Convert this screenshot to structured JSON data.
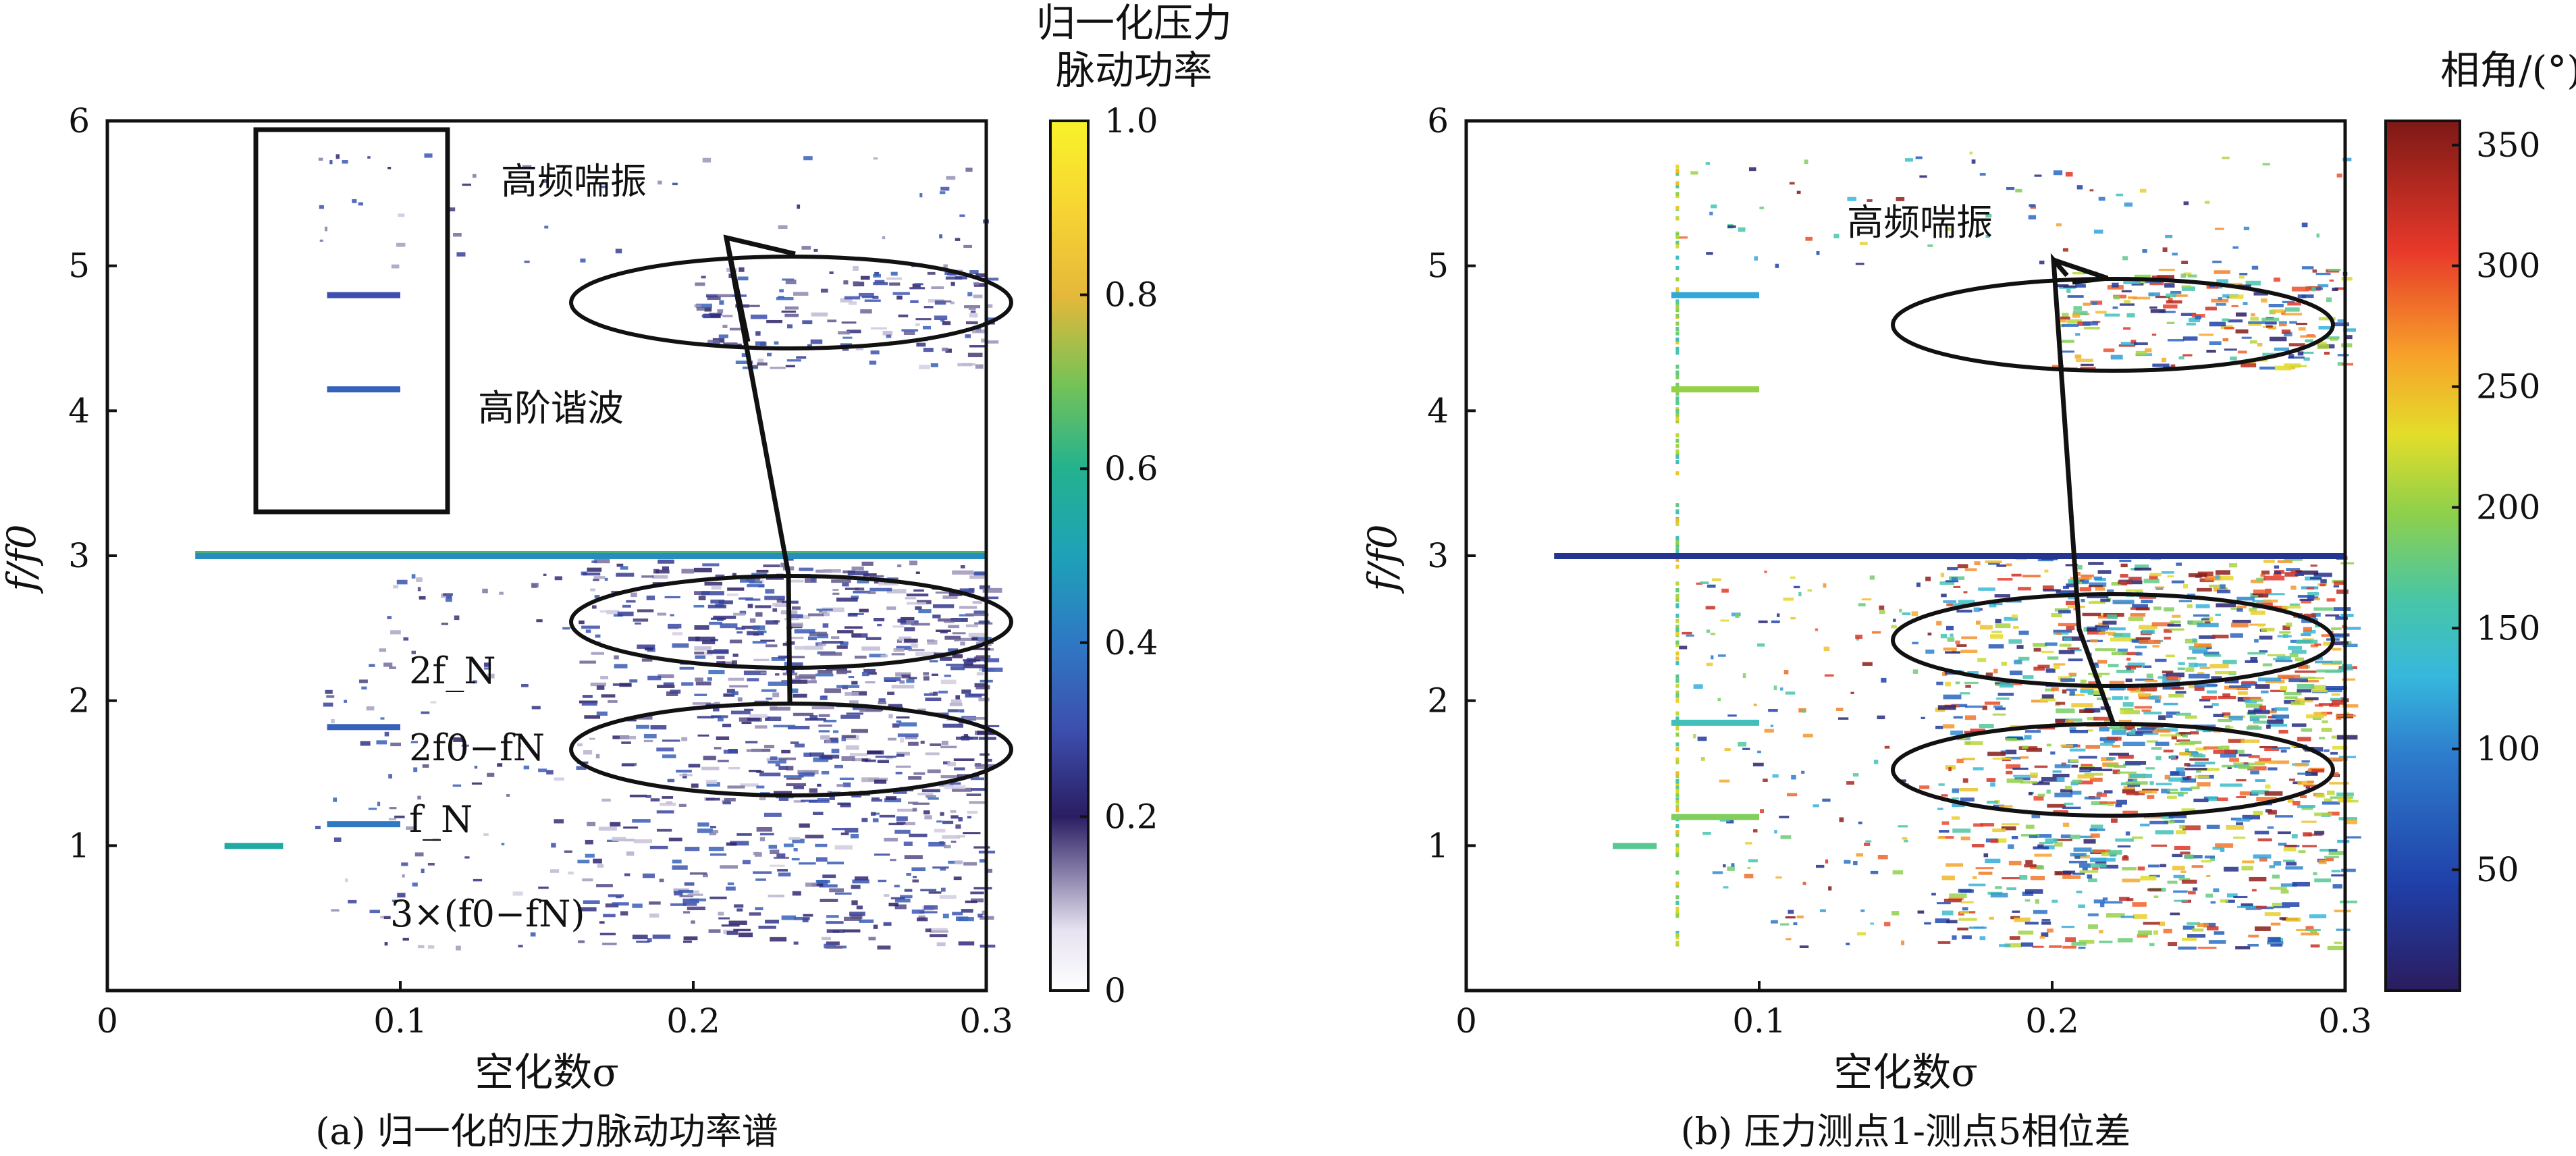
{
  "chart_data": [
    {
      "type": "heatmap",
      "caption": "(a) 归一化的压力脉动功率谱",
      "xlabel": "空化数σ",
      "ylabel": "f/f0",
      "xlim": [
        0,
        0.3
      ],
      "ylim": [
        0,
        6
      ],
      "xticks": [
        0,
        0.1,
        0.2,
        0.3
      ],
      "xtick_labels": [
        "0",
        "0.1",
        "0.2",
        "0.3"
      ],
      "yticks": [
        1,
        2,
        3,
        4,
        5,
        6
      ],
      "ytick_labels": [
        "1",
        "2",
        "3",
        "4",
        "5",
        "6"
      ],
      "colorbar": {
        "title_lines": [
          "归一化压力",
          "脉动功率"
        ],
        "range": [
          0,
          1.0
        ],
        "ticks": [
          0,
          0.2,
          0.4,
          0.6,
          0.8,
          1.0
        ],
        "tick_labels": [
          "0",
          "0.2",
          "0.4",
          "0.6",
          "0.8",
          "1.0"
        ],
        "colormap": "parula-like (white → purple → blue → teal → green → yellow)"
      },
      "annotations": [
        "高频喘振",
        "高阶谐波",
        "2f_N",
        "2f0−fN",
        "f_N",
        "3×(f0−fN)"
      ],
      "features": [
        {
          "name": "3f0 line",
          "x_range": [
            0.03,
            0.3
          ],
          "y": 3.0,
          "value": 0.45
        },
        {
          "name": "harmonic",
          "x_range": [
            0.075,
            0.1
          ],
          "y": 4.8,
          "value": 0.3
        },
        {
          "name": "harmonic",
          "x_range": [
            0.075,
            0.1
          ],
          "y": 4.15,
          "value": 0.35
        },
        {
          "name": "fN",
          "x_range": [
            0.075,
            0.1
          ],
          "y": 1.15,
          "value": 0.4
        },
        {
          "name": "2f0-fN",
          "x_range": [
            0.075,
            0.1
          ],
          "y": 1.82,
          "value": 0.35
        },
        {
          "name": "f0",
          "x_range": [
            0.04,
            0.06
          ],
          "y": 1.0,
          "value": 0.55
        }
      ],
      "highlight_regions": {
        "rectangle": {
          "x_range": [
            0.05,
            0.117
          ],
          "y_range": [
            3.3,
            5.95
          ]
        },
        "ellipses": [
          {
            "label": "高频喘振",
            "center": [
              0.235,
              4.75
            ]
          },
          {
            "center": [
              0.235,
              2.53
            ]
          },
          {
            "center": [
              0.235,
              1.67
            ]
          }
        ]
      }
    },
    {
      "type": "heatmap",
      "caption": "(b) 压力测点1-测点5相位差",
      "xlabel": "空化数σ",
      "ylabel": "f/f0",
      "xlim": [
        0,
        0.3
      ],
      "ylim": [
        0,
        6
      ],
      "xticks": [
        0,
        0.1,
        0.2,
        0.3
      ],
      "xtick_labels": [
        "0",
        "0.1",
        "0.2",
        "0.3"
      ],
      "yticks": [
        1,
        2,
        3,
        4,
        5,
        6
      ],
      "ytick_labels": [
        "1",
        "2",
        "3",
        "4",
        "5",
        "6"
      ],
      "colorbar": {
        "title": "相角/(°)",
        "range": [
          0,
          360
        ],
        "ticks": [
          50,
          100,
          150,
          200,
          250,
          300,
          350
        ],
        "tick_labels": [
          "50",
          "100",
          "150",
          "200",
          "250",
          "300",
          "350"
        ],
        "colormap": "jet"
      },
      "annotations": [
        "高频喘振"
      ],
      "features": [
        {
          "name": "3f0 line",
          "x_range": [
            0.03,
            0.3
          ],
          "y": 3.0,
          "phase": 30
        },
        {
          "name": "harmonic",
          "x_range": [
            0.07,
            0.1
          ],
          "y": 4.8,
          "phase": 120
        },
        {
          "name": "harmonic",
          "x_range": [
            0.07,
            0.1
          ],
          "y": 4.15,
          "phase": 200
        },
        {
          "name": "fN",
          "x_range": [
            0.07,
            0.1
          ],
          "y": 1.2,
          "phase": 190
        },
        {
          "name": "2f0-fN",
          "x_range": [
            0.07,
            0.1
          ],
          "y": 1.85,
          "phase": 150
        },
        {
          "name": "f0",
          "x_range": [
            0.05,
            0.065
          ],
          "y": 1.0,
          "phase": 170
        },
        {
          "name": "vertical band",
          "x": 0.072,
          "y_range": [
            0.3,
            5.7
          ]
        }
      ],
      "highlight_regions": {
        "ellipses": [
          {
            "label": "高频喘振",
            "center": [
              0.25,
              4.6
            ]
          },
          {
            "center": [
              0.25,
              2.4
            ]
          },
          {
            "center": [
              0.25,
              1.52
            ]
          }
        ]
      }
    }
  ]
}
